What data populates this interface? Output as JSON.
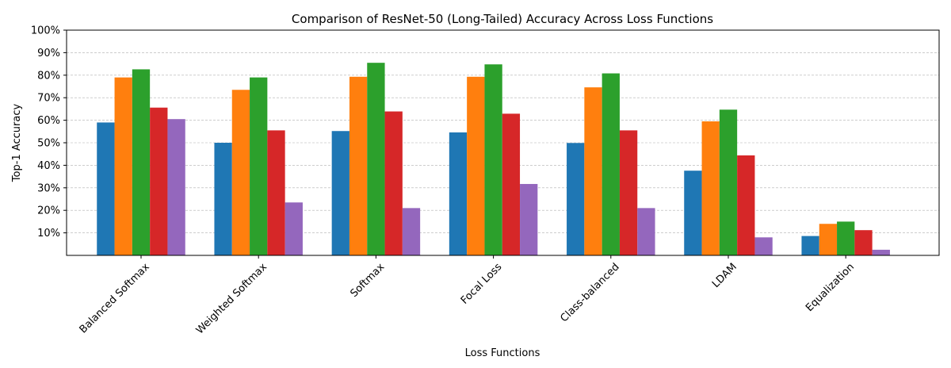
{
  "chart_data": {
    "type": "bar",
    "title": "Comparison of ResNet-50 (Long-Tailed) Accuracy Across Loss Functions",
    "xlabel": "Loss Functions",
    "ylabel": "Top-1 Accuracy",
    "ylim": [
      0,
      100
    ],
    "y_ticks": [
      "10%",
      "20%",
      "30%",
      "40%",
      "50%",
      "60%",
      "70%",
      "80%",
      "90%",
      "100%"
    ],
    "y_tick_values": [
      10,
      20,
      30,
      40,
      50,
      60,
      70,
      80,
      90,
      100
    ],
    "grid": "horizontal dashed",
    "categories": [
      "Balanced Softmax",
      "Weighted Softmax",
      "Softmax",
      "Focal Loss",
      "Class-balanced",
      "LDAM",
      "Equalization"
    ],
    "series": [
      {
        "color": "#1f77b4",
        "values": [
          59.0,
          50.0,
          55.2,
          54.6,
          49.9,
          37.6,
          8.6
        ]
      },
      {
        "color": "#ff7f0e",
        "values": [
          79.0,
          73.5,
          79.3,
          79.3,
          74.6,
          59.5,
          14.0
        ]
      },
      {
        "color": "#2ca02c",
        "values": [
          82.6,
          79.0,
          85.5,
          84.8,
          80.8,
          64.7,
          15.0
        ]
      },
      {
        "color": "#d62728",
        "values": [
          65.6,
          55.5,
          63.9,
          62.9,
          55.5,
          44.4,
          11.2
        ]
      },
      {
        "color": "#9467bd",
        "values": [
          60.5,
          23.5,
          21.0,
          31.7,
          21.0,
          8.0,
          2.5
        ]
      }
    ]
  }
}
